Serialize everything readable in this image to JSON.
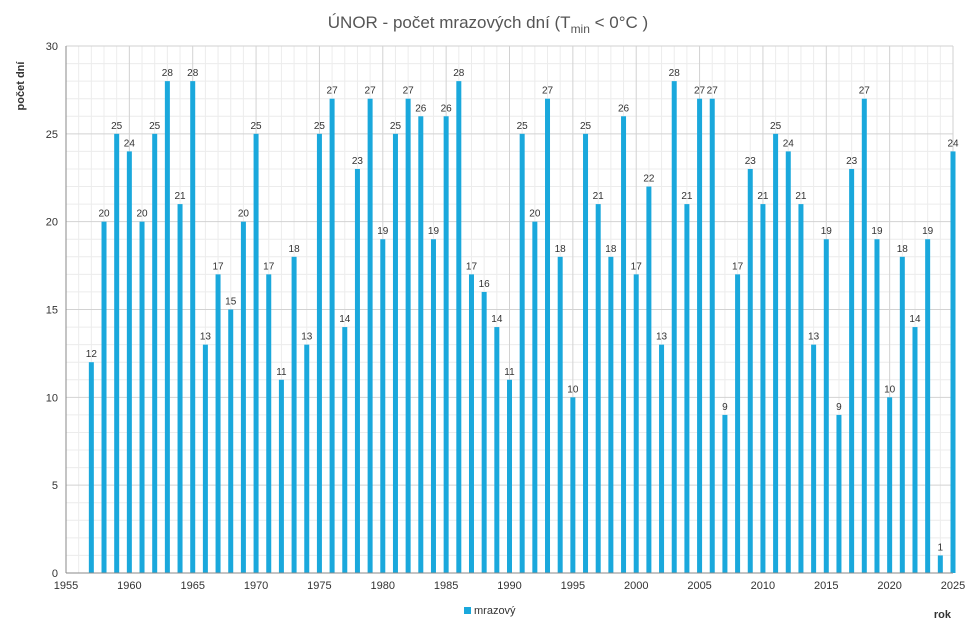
{
  "chart_data": {
    "type": "bar",
    "title_main": "ÚNOR - počet mrazových dní (T",
    "title_sub": "min",
    "title_end": " < 0°C )",
    "xlabel": "rok",
    "ylabel": "počet dní",
    "xlim": [
      1955,
      2025
    ],
    "ylim": [
      0,
      30
    ],
    "x_ticks": [
      1955,
      1960,
      1965,
      1970,
      1975,
      1980,
      1985,
      1990,
      1995,
      2000,
      2005,
      2010,
      2015,
      2020,
      2025
    ],
    "y_ticks": [
      0,
      5,
      10,
      15,
      20,
      25,
      30
    ],
    "grid": true,
    "legend_position": "bottom",
    "series": [
      {
        "name": "mrazový",
        "color": "#1aa8dc",
        "points": [
          {
            "x": 1957,
            "y": 12
          },
          {
            "x": 1958,
            "y": 20
          },
          {
            "x": 1959,
            "y": 25
          },
          {
            "x": 1960,
            "y": 24
          },
          {
            "x": 1961,
            "y": 20
          },
          {
            "x": 1962,
            "y": 25
          },
          {
            "x": 1963,
            "y": 28
          },
          {
            "x": 1964,
            "y": 21
          },
          {
            "x": 1965,
            "y": 28
          },
          {
            "x": 1966,
            "y": 13
          },
          {
            "x": 1967,
            "y": 17
          },
          {
            "x": 1968,
            "y": 15
          },
          {
            "x": 1969,
            "y": 20
          },
          {
            "x": 1970,
            "y": 25
          },
          {
            "x": 1971,
            "y": 17
          },
          {
            "x": 1972,
            "y": 11
          },
          {
            "x": 1973,
            "y": 18
          },
          {
            "x": 1974,
            "y": 13
          },
          {
            "x": 1975,
            "y": 25
          },
          {
            "x": 1976,
            "y": 27
          },
          {
            "x": 1977,
            "y": 14
          },
          {
            "x": 1978,
            "y": 23
          },
          {
            "x": 1979,
            "y": 27
          },
          {
            "x": 1980,
            "y": 19
          },
          {
            "x": 1981,
            "y": 25
          },
          {
            "x": 1982,
            "y": 27
          },
          {
            "x": 1983,
            "y": 26
          },
          {
            "x": 1984,
            "y": 19
          },
          {
            "x": 1985,
            "y": 26
          },
          {
            "x": 1986,
            "y": 28
          },
          {
            "x": 1987,
            "y": 17
          },
          {
            "x": 1988,
            "y": 16
          },
          {
            "x": 1989,
            "y": 14
          },
          {
            "x": 1990,
            "y": 11
          },
          {
            "x": 1991,
            "y": 25
          },
          {
            "x": 1992,
            "y": 20
          },
          {
            "x": 1993,
            "y": 27
          },
          {
            "x": 1994,
            "y": 18
          },
          {
            "x": 1995,
            "y": 10
          },
          {
            "x": 1996,
            "y": 25
          },
          {
            "x": 1997,
            "y": 21
          },
          {
            "x": 1998,
            "y": 18
          },
          {
            "x": 1999,
            "y": 26
          },
          {
            "x": 2000,
            "y": 17
          },
          {
            "x": 2001,
            "y": 22
          },
          {
            "x": 2002,
            "y": 13
          },
          {
            "x": 2003,
            "y": 28
          },
          {
            "x": 2004,
            "y": 21
          },
          {
            "x": 2005,
            "y": 27
          },
          {
            "x": 2006,
            "y": 27
          },
          {
            "x": 2007,
            "y": 9
          },
          {
            "x": 2008,
            "y": 17
          },
          {
            "x": 2009,
            "y": 23
          },
          {
            "x": 2010,
            "y": 21
          },
          {
            "x": 2011,
            "y": 25
          },
          {
            "x": 2012,
            "y": 24
          },
          {
            "x": 2013,
            "y": 21
          },
          {
            "x": 2014,
            "y": 13
          },
          {
            "x": 2015,
            "y": 19
          },
          {
            "x": 2016,
            "y": 9
          },
          {
            "x": 2017,
            "y": 23
          },
          {
            "x": 2018,
            "y": 27
          },
          {
            "x": 2019,
            "y": 19
          },
          {
            "x": 2020,
            "y": 10
          },
          {
            "x": 2021,
            "y": 18
          },
          {
            "x": 2022,
            "y": 14
          },
          {
            "x": 2023,
            "y": 19
          },
          {
            "x": 2024,
            "y": 1
          },
          {
            "x": 2025,
            "y": 24
          }
        ]
      }
    ]
  }
}
